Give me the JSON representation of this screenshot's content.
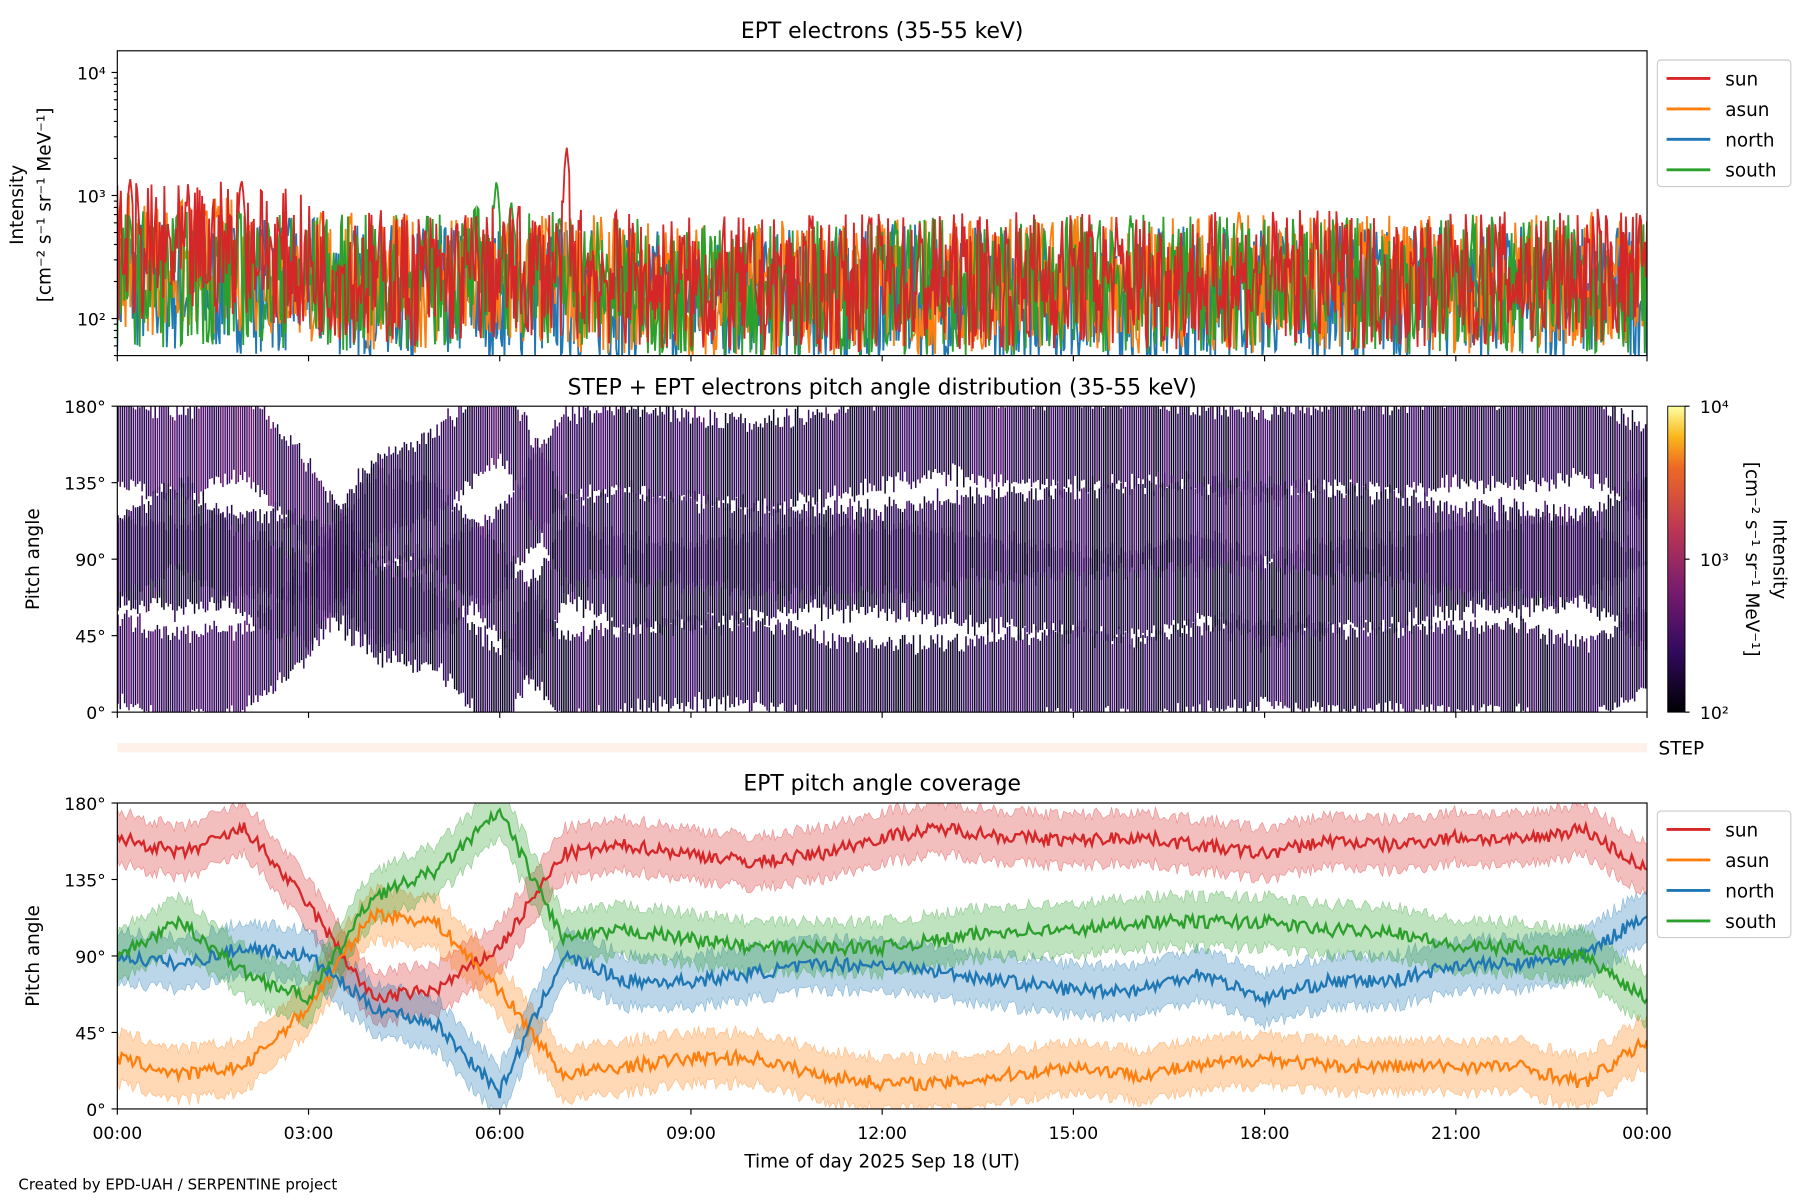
{
  "credit": "Created by EPD-UAH / SERPENTINE project",
  "colors": {
    "sun": "#d62728",
    "asun": "#ff7f0e",
    "north": "#1f77b4",
    "south": "#2ca02c",
    "step_bar": "#fdf1ea"
  },
  "chart_data": [
    {
      "type": "line",
      "title": "EPT electrons (35-55 keV)",
      "ylabel": [
        "Intensity",
        "[cm⁻² s⁻¹ sr⁻¹ MeV⁻¹]"
      ],
      "yscale": "log",
      "ylim": [
        50,
        15000
      ],
      "yticks": [
        {
          "v": 100,
          "label": "10²"
        },
        {
          "v": 1000,
          "label": "10³"
        },
        {
          "v": 10000,
          "label": "10⁴"
        }
      ],
      "xlim_hours": [
        0,
        24
      ],
      "legend": {
        "placement": "outside-right",
        "entries": [
          "sun",
          "asun",
          "north",
          "south"
        ]
      },
      "hours": [
        0,
        1,
        2,
        3,
        4,
        5,
        6,
        7,
        8,
        9,
        10,
        11,
        12,
        13,
        14,
        15,
        16,
        17,
        18,
        19,
        20,
        21,
        22,
        23,
        24
      ],
      "series": [
        {
          "name": "sun",
          "values": [
            350,
            330,
            400,
            260,
            220,
            210,
            230,
            250,
            200,
            190,
            180,
            190,
            200,
            200,
            210,
            210,
            210,
            200,
            210,
            210,
            200,
            200,
            210,
            220,
            230
          ],
          "peaks": [
            {
              "hour": 7.05,
              "value": 2500
            },
            {
              "hour": 1.95,
              "value": 1400
            },
            {
              "hour": 0.2,
              "value": 1400
            }
          ]
        },
        {
          "name": "asun",
          "values": [
            280,
            260,
            280,
            220,
            200,
            190,
            190,
            200,
            180,
            170,
            170,
            180,
            180,
            180,
            190,
            190,
            190,
            190,
            190,
            190,
            190,
            190,
            190,
            200,
            200
          ],
          "peaks": [
            {
              "hour": 17.6,
              "value": 780
            }
          ]
        },
        {
          "name": "north",
          "values": [
            200,
            180,
            190,
            180,
            170,
            160,
            160,
            160,
            150,
            150,
            150,
            150,
            160,
            160,
            160,
            160,
            160,
            160,
            160,
            160,
            160,
            160,
            160,
            160,
            170
          ],
          "peaks": []
        },
        {
          "name": "south",
          "values": [
            220,
            210,
            220,
            200,
            190,
            200,
            260,
            220,
            180,
            170,
            170,
            180,
            180,
            180,
            180,
            190,
            190,
            190,
            190,
            190,
            190,
            190,
            190,
            190,
            190
          ],
          "peaks": [
            {
              "hour": 5.95,
              "value": 1350
            },
            {
              "hour": 6.2,
              "value": 700
            }
          ]
        }
      ]
    },
    {
      "type": "heatmap",
      "title": "STEP + EPT electrons pitch angle distribution (35-55 keV)",
      "ylabel": "Pitch angle",
      "ylim": [
        0,
        180
      ],
      "yticks": [
        "0°",
        "45°",
        "90°",
        "135°",
        "180°"
      ],
      "colorbar": {
        "label": "Intensity\n[cm⁻² s⁻¹ sr⁻¹ MeV⁻¹]",
        "label_lines": [
          "Intensity",
          "[cm⁻² s⁻¹ sr⁻¹ MeV⁻¹]"
        ],
        "scale": "log",
        "range": [
          100,
          10000
        ],
        "ticks": [
          "10²",
          "10³",
          "10⁴"
        ],
        "colormap": "inferno"
      },
      "note": "intensity mapped onto the EPT sensor pitch-angle bands of panel 3"
    },
    {
      "type": "line",
      "title": "EPT pitch angle coverage",
      "ylabel": "Pitch angle",
      "ylim": [
        0,
        180
      ],
      "yticks": [
        {
          "v": 0,
          "label": "0°"
        },
        {
          "v": 45,
          "label": "45°"
        },
        {
          "v": 90,
          "label": "90°"
        },
        {
          "v": 135,
          "label": "135°"
        },
        {
          "v": 180,
          "label": "180°"
        }
      ],
      "band_halfwidth_deg": 15,
      "legend": {
        "placement": "outside-right",
        "entries": [
          "sun",
          "asun",
          "north",
          "south"
        ]
      },
      "hours": [
        0,
        1,
        2,
        3,
        4,
        5,
        6,
        7,
        8,
        9,
        10,
        11,
        12,
        13,
        14,
        15,
        16,
        17,
        18,
        19,
        20,
        21,
        22,
        23,
        24
      ],
      "series": [
        {
          "name": "sun",
          "values": [
            160,
            150,
            165,
            120,
            65,
            70,
            95,
            150,
            155,
            150,
            145,
            150,
            160,
            165,
            160,
            158,
            160,
            155,
            150,
            158,
            155,
            160,
            158,
            165,
            140
          ]
        },
        {
          "name": "asun",
          "values": [
            30,
            20,
            25,
            60,
            115,
            110,
            70,
            20,
            25,
            30,
            30,
            20,
            15,
            15,
            20,
            25,
            20,
            25,
            30,
            25,
            25,
            25,
            25,
            15,
            40
          ]
        },
        {
          "name": "north",
          "values": [
            90,
            85,
            95,
            90,
            60,
            50,
            10,
            90,
            75,
            75,
            80,
            85,
            85,
            80,
            75,
            70,
            70,
            80,
            65,
            75,
            75,
            85,
            85,
            90,
            115
          ]
        },
        {
          "name": "south",
          "values": [
            90,
            110,
            80,
            65,
            125,
            140,
            175,
            100,
            105,
            100,
            95,
            95,
            95,
            100,
            105,
            105,
            110,
            110,
            110,
            105,
            105,
            95,
            95,
            90,
            65
          ]
        }
      ],
      "xlabel": "Time of day 2025 Sep 18 (UT)",
      "xticks": [
        "00:00",
        "03:00",
        "06:00",
        "09:00",
        "12:00",
        "15:00",
        "18:00",
        "21:00",
        "00:00"
      ]
    }
  ],
  "step_label": "STEP"
}
